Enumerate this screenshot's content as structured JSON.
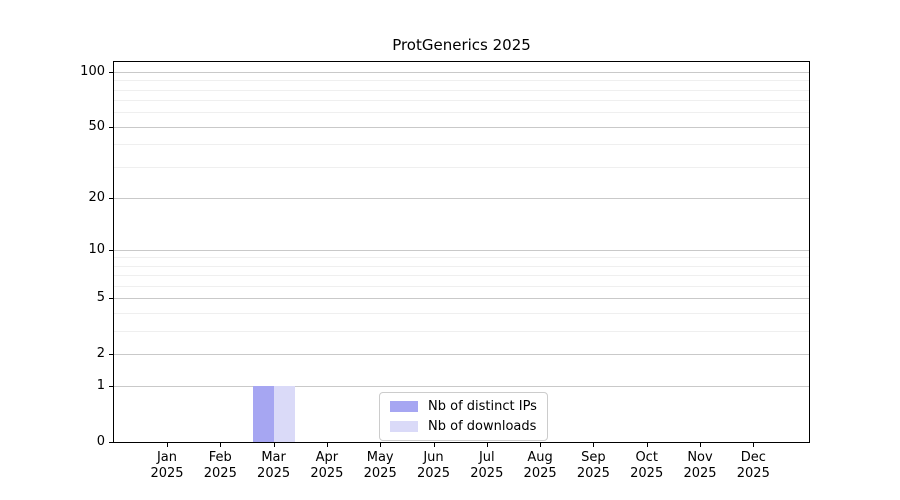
{
  "chart_data": {
    "type": "bar",
    "title": "ProtGenerics 2025",
    "xlabel": "",
    "ylabel": "",
    "year": "2025",
    "categories": [
      "Jan",
      "Feb",
      "Mar",
      "Apr",
      "May",
      "Jun",
      "Jul",
      "Aug",
      "Sep",
      "Oct",
      "Nov",
      "Dec"
    ],
    "series": [
      {
        "name": "Nb of distinct IPs",
        "color": "#a6a6f2",
        "values": [
          0,
          0,
          1,
          0,
          0,
          0,
          0,
          0,
          0,
          0,
          0,
          0
        ]
      },
      {
        "name": "Nb of downloads",
        "color": "#dadaf8",
        "values": [
          0,
          0,
          1,
          0,
          0,
          0,
          0,
          0,
          0,
          0,
          0,
          0
        ]
      }
    ],
    "yscale": "log1p",
    "yticks": [
      0,
      1,
      2,
      5,
      10,
      20,
      50,
      100
    ],
    "minor_yticks": [
      3,
      4,
      6,
      7,
      8,
      9,
      30,
      40,
      60,
      70,
      80,
      90
    ],
    "ylim": [
      0,
      113
    ],
    "grid": "horizontal",
    "legend_position": "lower center",
    "colors": {
      "major_grid": "#c9c9c9",
      "minor_grid": "#efefef",
      "axis": "#000000",
      "background": "#ffffff"
    }
  }
}
